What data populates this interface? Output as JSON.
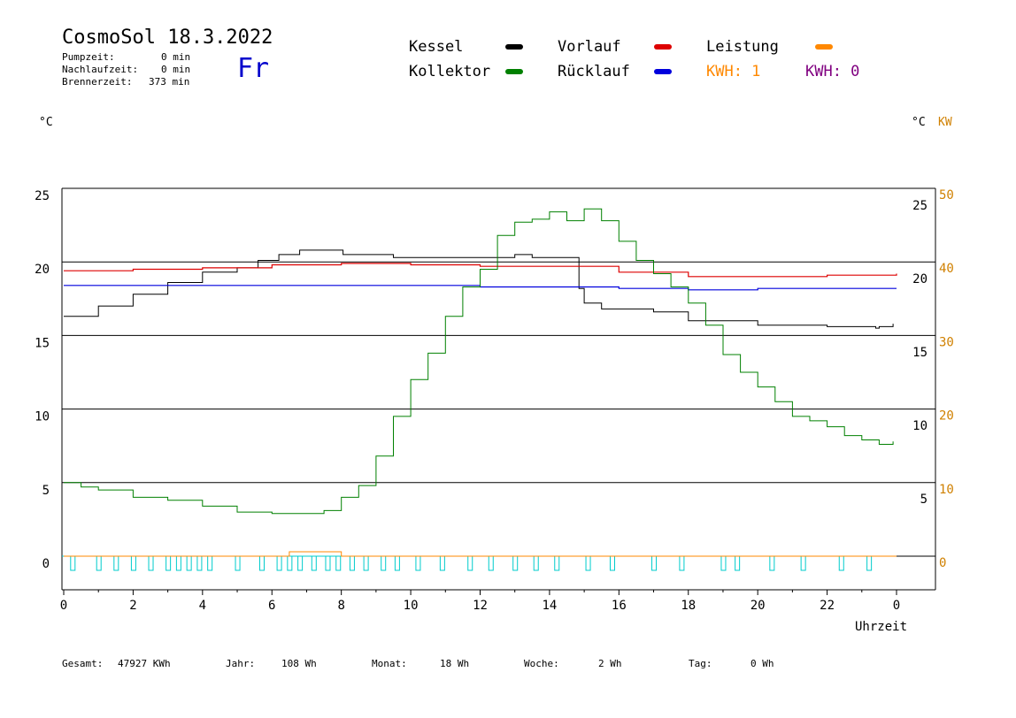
{
  "header": {
    "title": "CosmoSol 18.3.2022",
    "day": "Fr",
    "stats": [
      {
        "label": "Pumpzeit:",
        "value": "0 min"
      },
      {
        "label": "Nachlaufzeit:",
        "value": "0 min"
      },
      {
        "label": "Brennerzeit:",
        "value": "373 min"
      }
    ]
  },
  "legend": {
    "kessel": {
      "label": "Kessel",
      "color": "#000000"
    },
    "vorlauf": {
      "label": "Vorlauf",
      "color": "#dd0000"
    },
    "leistung": {
      "label": "Leistung",
      "color": "#ff8800"
    },
    "kollektor": {
      "label": "Kollektor",
      "color": "#008000"
    },
    "ruecklauf": {
      "label": "Rücklauf",
      "color": "#0000dd"
    },
    "kwh1": {
      "label": "KWH: 1",
      "color": "#ff8800"
    },
    "kwh2": {
      "label": "KWH: 0",
      "color": "#800080"
    }
  },
  "footer": [
    {
      "label": "Gesamt:",
      "value": "47927 KWh"
    },
    {
      "label": "Jahr:",
      "value": "108 Wh"
    },
    {
      "label": "Monat:",
      "value": "18 Wh"
    },
    {
      "label": "Woche:",
      "value": "2 Wh"
    },
    {
      "label": "Tag:",
      "value": "0 Wh"
    }
  ],
  "chart_data": {
    "type": "line",
    "xlabel": "Uhrzeit",
    "ylabel_left": "°C",
    "ylabel_right": "°C",
    "ylabel_right2": "KW",
    "xlim": [
      0,
      24
    ],
    "ylim_left": [
      -2,
      25
    ],
    "x_ticks": [
      "0",
      "2",
      "4",
      "6",
      "8",
      "10",
      "12",
      "14",
      "16",
      "18",
      "20",
      "22",
      "0"
    ],
    "y_ticks_left": [
      "0",
      "5",
      "10",
      "15",
      "20",
      "25"
    ],
    "y_ticks_right": [
      "5",
      "10",
      "15",
      "20",
      "25"
    ],
    "y_ticks_kw": [
      "0",
      "10",
      "20",
      "30",
      "40",
      "50"
    ],
    "grid": true,
    "series": [
      {
        "name": "Kessel",
        "color": "#000000",
        "x": [
          0,
          1,
          2,
          3,
          4,
          5,
          5.6,
          6.2,
          6.8,
          7.5,
          8.0,
          8.05,
          9.5,
          11,
          13,
          13.5,
          14.7,
          14.85,
          15,
          15.5,
          17,
          18,
          20,
          22,
          23.4,
          23.5,
          23.9
        ],
        "y": [
          16.3,
          17.0,
          17.8,
          18.6,
          19.3,
          19.6,
          20.1,
          20.5,
          20.8,
          20.8,
          20.8,
          20.5,
          20.3,
          20.3,
          20.5,
          20.3,
          20.3,
          18.2,
          17.2,
          16.8,
          16.6,
          16.0,
          15.7,
          15.6,
          15.5,
          15.6,
          15.8
        ]
      },
      {
        "name": "Vorlauf",
        "color": "#dd0000",
        "x": [
          0,
          2,
          4,
          6,
          8,
          10,
          12,
          14,
          16,
          18,
          20,
          22,
          24
        ],
        "y": [
          19.4,
          19.5,
          19.6,
          19.8,
          19.9,
          19.8,
          19.7,
          19.7,
          19.3,
          19.0,
          19.0,
          19.1,
          19.2
        ]
      },
      {
        "name": "Rücklauf",
        "color": "#0000dd",
        "x": [
          0,
          2,
          4,
          6,
          8,
          10,
          12,
          14,
          16,
          18,
          20,
          22,
          24
        ],
        "y": [
          18.4,
          18.4,
          18.4,
          18.4,
          18.4,
          18.4,
          18.3,
          18.3,
          18.2,
          18.1,
          18.2,
          18.2,
          18.2
        ]
      },
      {
        "name": "Kollektor",
        "color": "#008000",
        "x": [
          0,
          0.5,
          1,
          2,
          3,
          4,
          5,
          6,
          7,
          7.5,
          8,
          8.5,
          9,
          9.5,
          10,
          10.5,
          11,
          11.5,
          12,
          12.5,
          13,
          13.5,
          14,
          14.5,
          15,
          15.5,
          16,
          16.5,
          17,
          17.5,
          18,
          18.5,
          19,
          19.5,
          20,
          20.5,
          21,
          21.5,
          22,
          22.5,
          23,
          23.5,
          23.9
        ],
        "y": [
          5.0,
          4.7,
          4.5,
          4.0,
          3.8,
          3.4,
          3.0,
          2.9,
          2.9,
          3.1,
          4.0,
          4.8,
          6.8,
          9.5,
          12.0,
          13.8,
          16.3,
          18.3,
          19.5,
          21.8,
          22.7,
          22.9,
          23.4,
          22.8,
          23.6,
          22.8,
          21.4,
          20.1,
          19.2,
          18.3,
          17.2,
          15.7,
          13.7,
          12.5,
          11.5,
          10.5,
          9.5,
          9.2,
          8.8,
          8.2,
          7.9,
          7.6,
          7.8
        ]
      },
      {
        "name": "Leistung",
        "color": "#ff8800",
        "x": [
          0,
          6.5,
          6.5,
          8.0,
          8.0,
          24
        ],
        "y": [
          0,
          0,
          0.3,
          0.3,
          0,
          0
        ]
      }
    ],
    "pump_pulses_x": [
      0.25,
      1.0,
      1.5,
      2.0,
      2.5,
      3.0,
      3.3,
      3.6,
      3.9,
      4.2,
      5.0,
      5.7,
      6.2,
      6.5,
      6.8,
      7.2,
      7.6,
      7.9,
      8.3,
      8.7,
      9.2,
      9.6,
      10.2,
      10.9,
      11.7,
      12.3,
      13.0,
      13.6,
      14.2,
      15.1,
      15.8,
      17.0,
      17.8,
      19.0,
      19.4,
      20.4,
      21.3,
      22.4,
      23.2
    ]
  }
}
